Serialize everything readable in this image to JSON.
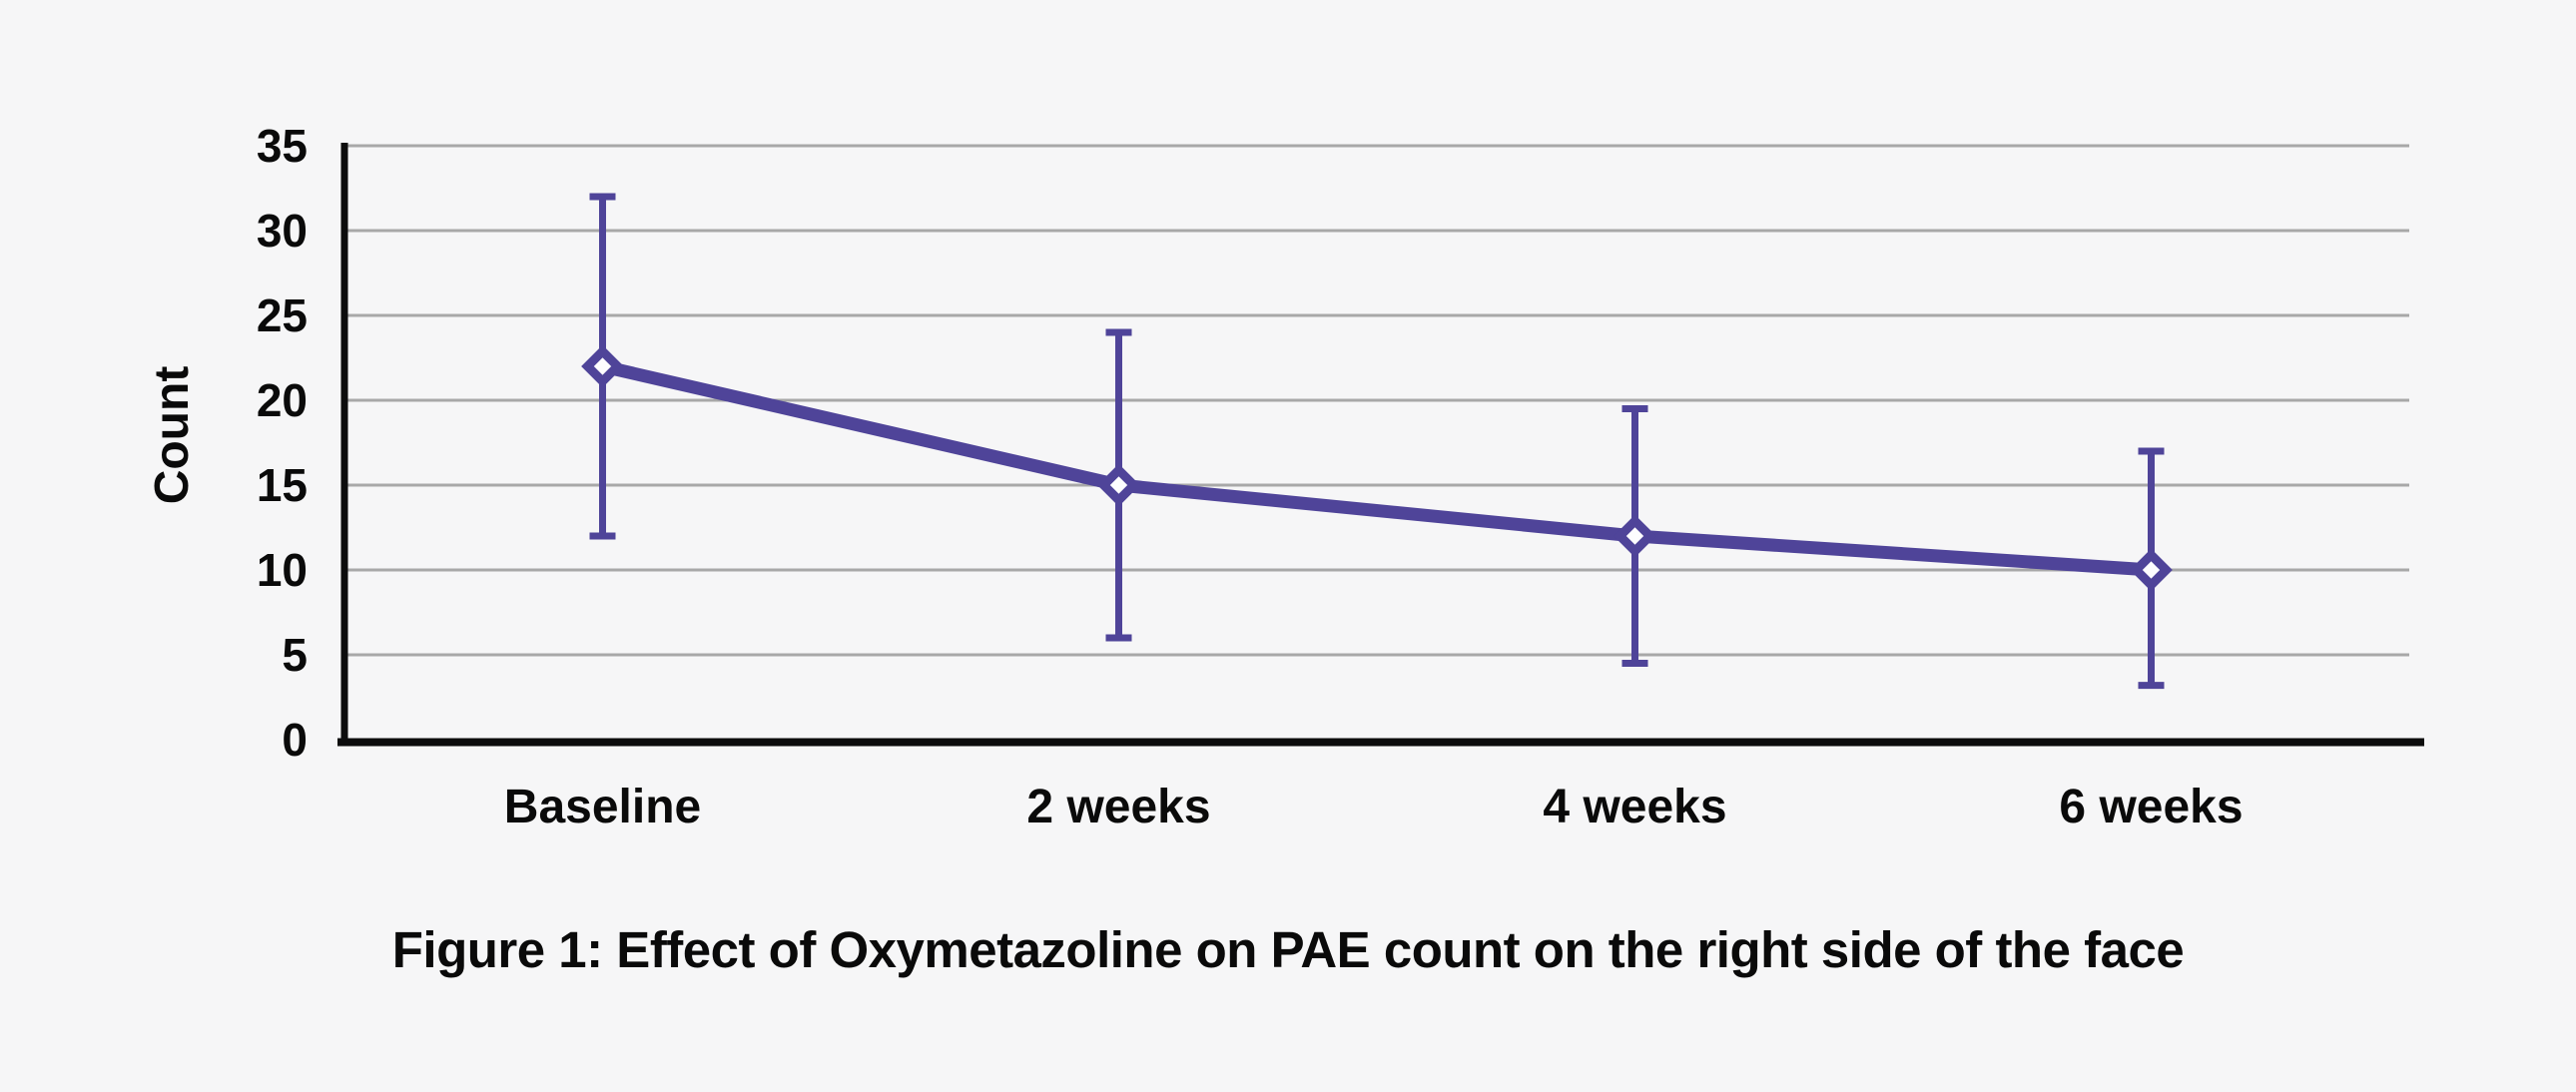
{
  "figure": {
    "caption": "Figure 1: Effect of Oxymetazoline on PAE count on the right side of the face"
  },
  "chart_data": {
    "type": "line",
    "title": "",
    "xlabel": "",
    "ylabel": "Count",
    "categories": [
      "Baseline",
      "2 weeks",
      "4 weeks",
      "6 weeks"
    ],
    "series": [
      {
        "name": "PAE count right side",
        "values": [
          22,
          15,
          12,
          10
        ],
        "error_high": [
          32,
          24,
          19.5,
          17
        ],
        "error_low": [
          12,
          6,
          4.5,
          3.2
        ]
      }
    ],
    "ylim": [
      0,
      35
    ],
    "yticks": [
      0,
      5,
      10,
      15,
      20,
      25,
      30,
      35
    ],
    "grid": "horizontal",
    "legend": "none",
    "marker": "open-diamond",
    "colors": {
      "series": "#4f4499",
      "grid": "#a8a8a8",
      "axis": "#0d0d0d",
      "background": "#f6f6f7",
      "marker_fill": "#fdfdfe",
      "text": "#0a0a0a"
    }
  }
}
